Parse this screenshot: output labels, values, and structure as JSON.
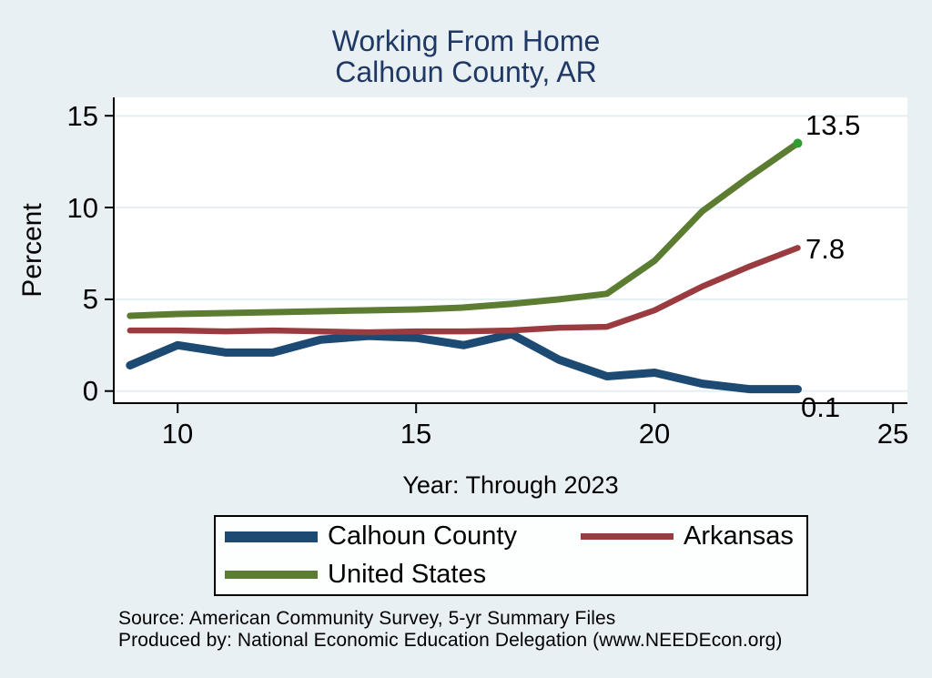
{
  "title": {
    "line1": "Working From Home",
    "line2": "Calhoun County, AR"
  },
  "chart_data": {
    "type": "line",
    "x": [
      9,
      10,
      11,
      12,
      13,
      14,
      15,
      16,
      17,
      18,
      19,
      20,
      21,
      22,
      23
    ],
    "series": [
      {
        "name": "Calhoun County",
        "color": "#1d4a73",
        "line_width": 9,
        "values": [
          1.4,
          2.5,
          2.1,
          2.1,
          2.8,
          3.0,
          2.9,
          2.5,
          3.1,
          1.7,
          0.8,
          1.0,
          0.4,
          0.1,
          0.1
        ],
        "end_label": "0.1"
      },
      {
        "name": "Arkansas",
        "color": "#9a3b40",
        "line_width": 6.5,
        "values": [
          3.3,
          3.3,
          3.25,
          3.3,
          3.25,
          3.2,
          3.25,
          3.25,
          3.3,
          3.45,
          3.5,
          4.4,
          5.7,
          6.8,
          7.8
        ],
        "end_label": "7.8"
      },
      {
        "name": "United States",
        "color": "#5c7c31",
        "line_width": 7,
        "values": [
          4.1,
          4.2,
          4.25,
          4.3,
          4.35,
          4.4,
          4.45,
          4.55,
          4.75,
          5.0,
          5.3,
          7.1,
          9.8,
          11.7,
          13.5
        ],
        "end_label": "13.5",
        "end_dot_color": "#2e9e2e"
      }
    ],
    "title": "Working From Home — Calhoun County, AR",
    "xlabel": "Year: Through 2023",
    "ylabel": "Percent",
    "x_ticks": [
      10,
      15,
      20,
      25
    ],
    "y_ticks": [
      0,
      5,
      10,
      15
    ],
    "x_tick_labels": [
      "10",
      "15",
      "20",
      "25"
    ],
    "y_tick_labels": [
      "0",
      "5",
      "10",
      "15"
    ],
    "xlim": [
      8.66,
      25.3
    ],
    "ylim": [
      -0.66,
      16.0
    ],
    "grid": true,
    "legend_position": "bottom"
  },
  "legend": {
    "items": [
      {
        "label": "Calhoun County",
        "color": "#1d4a73"
      },
      {
        "label": "Arkansas",
        "color": "#9a3b40"
      },
      {
        "label": "United States",
        "color": "#5c7c31"
      }
    ]
  },
  "footer": {
    "line1": "Source: American Community Survey, 5-yr Summary Files",
    "line2": "Produced by: National Economic Education Delegation (www.NEEDEcon.org)"
  },
  "colors": {
    "background": "#e9f0f3",
    "plot_background": "#ffffff",
    "gridline": "#e4eff3",
    "title_text": "#1f3864",
    "axis": "#000000"
  }
}
